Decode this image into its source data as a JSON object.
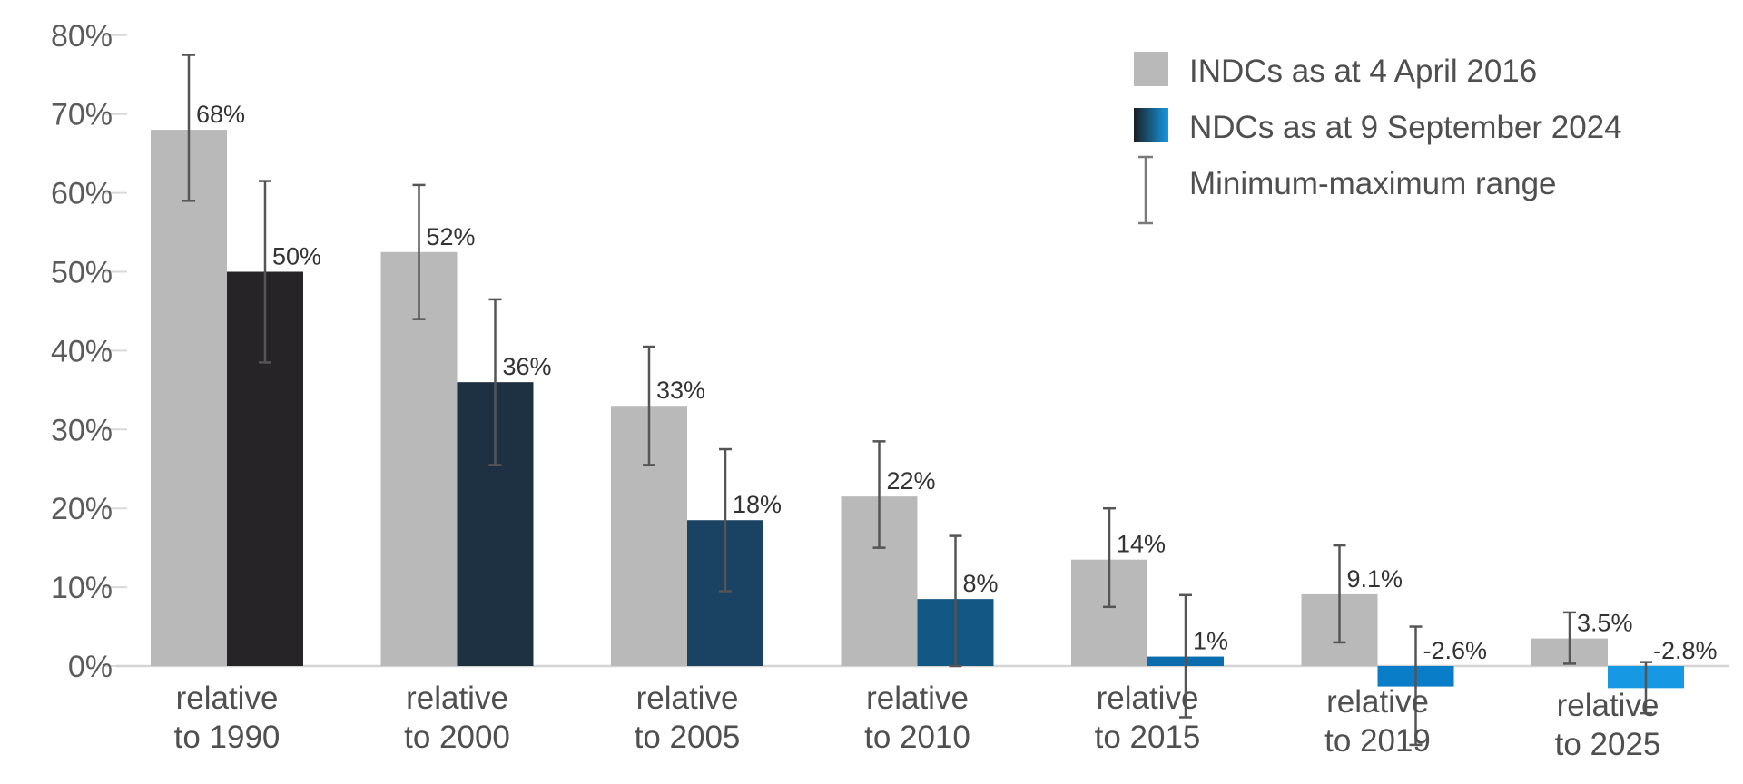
{
  "chart_data": {
    "type": "bar",
    "categories": [
      [
        "relative",
        "to 1990"
      ],
      [
        "relative",
        "to 2000"
      ],
      [
        "relative",
        "to 2005"
      ],
      [
        "relative",
        "to 2010"
      ],
      [
        "relative",
        "to 2015"
      ],
      [
        "relative",
        "to 2019"
      ],
      [
        "relative",
        "to 2025"
      ]
    ],
    "series": [
      {
        "name": "INDCs as at 4 April 2016",
        "values": [
          68,
          52.5,
          33,
          21.5,
          13.5,
          9.1,
          3.5
        ],
        "labels": [
          "68%",
          "52%",
          "33%",
          "22%",
          "14%",
          "9.1%",
          "3.5%"
        ],
        "range_min": [
          59,
          44,
          25.5,
          15,
          7.5,
          3,
          0.3
        ],
        "range_max": [
          77.5,
          61,
          40.5,
          28.5,
          20,
          15.3,
          6.8
        ],
        "color": "#b9b9b9"
      },
      {
        "name": "NDCs as at 9 September 2024",
        "values": [
          50,
          36,
          18.5,
          8.5,
          1.2,
          -2.6,
          -2.8
        ],
        "labels": [
          "50%",
          "36%",
          "18%",
          "8%",
          "1%",
          "-2.6%",
          "-2.8%"
        ],
        "range_min": [
          38.5,
          25.5,
          9.5,
          0,
          -6.5,
          -10,
          -6
        ],
        "range_max": [
          61.5,
          46.5,
          27.5,
          16.5,
          9,
          5,
          0.5
        ],
        "colors": [
          "#262427",
          "#1e3142",
          "#1a4262",
          "#135784",
          "#0c6dae",
          "#0a7dc8",
          "#1698e2"
        ],
        "legend_gradient": [
          "#1b1f24",
          "#1698e2"
        ]
      }
    ],
    "range_legend": "Minimum-maximum range",
    "yticks": [
      "0%",
      "10%",
      "20%",
      "30%",
      "40%",
      "50%",
      "60%",
      "70%",
      "80%"
    ],
    "ylim": [
      0,
      80
    ],
    "legend_position": "top-right",
    "grid": false
  }
}
